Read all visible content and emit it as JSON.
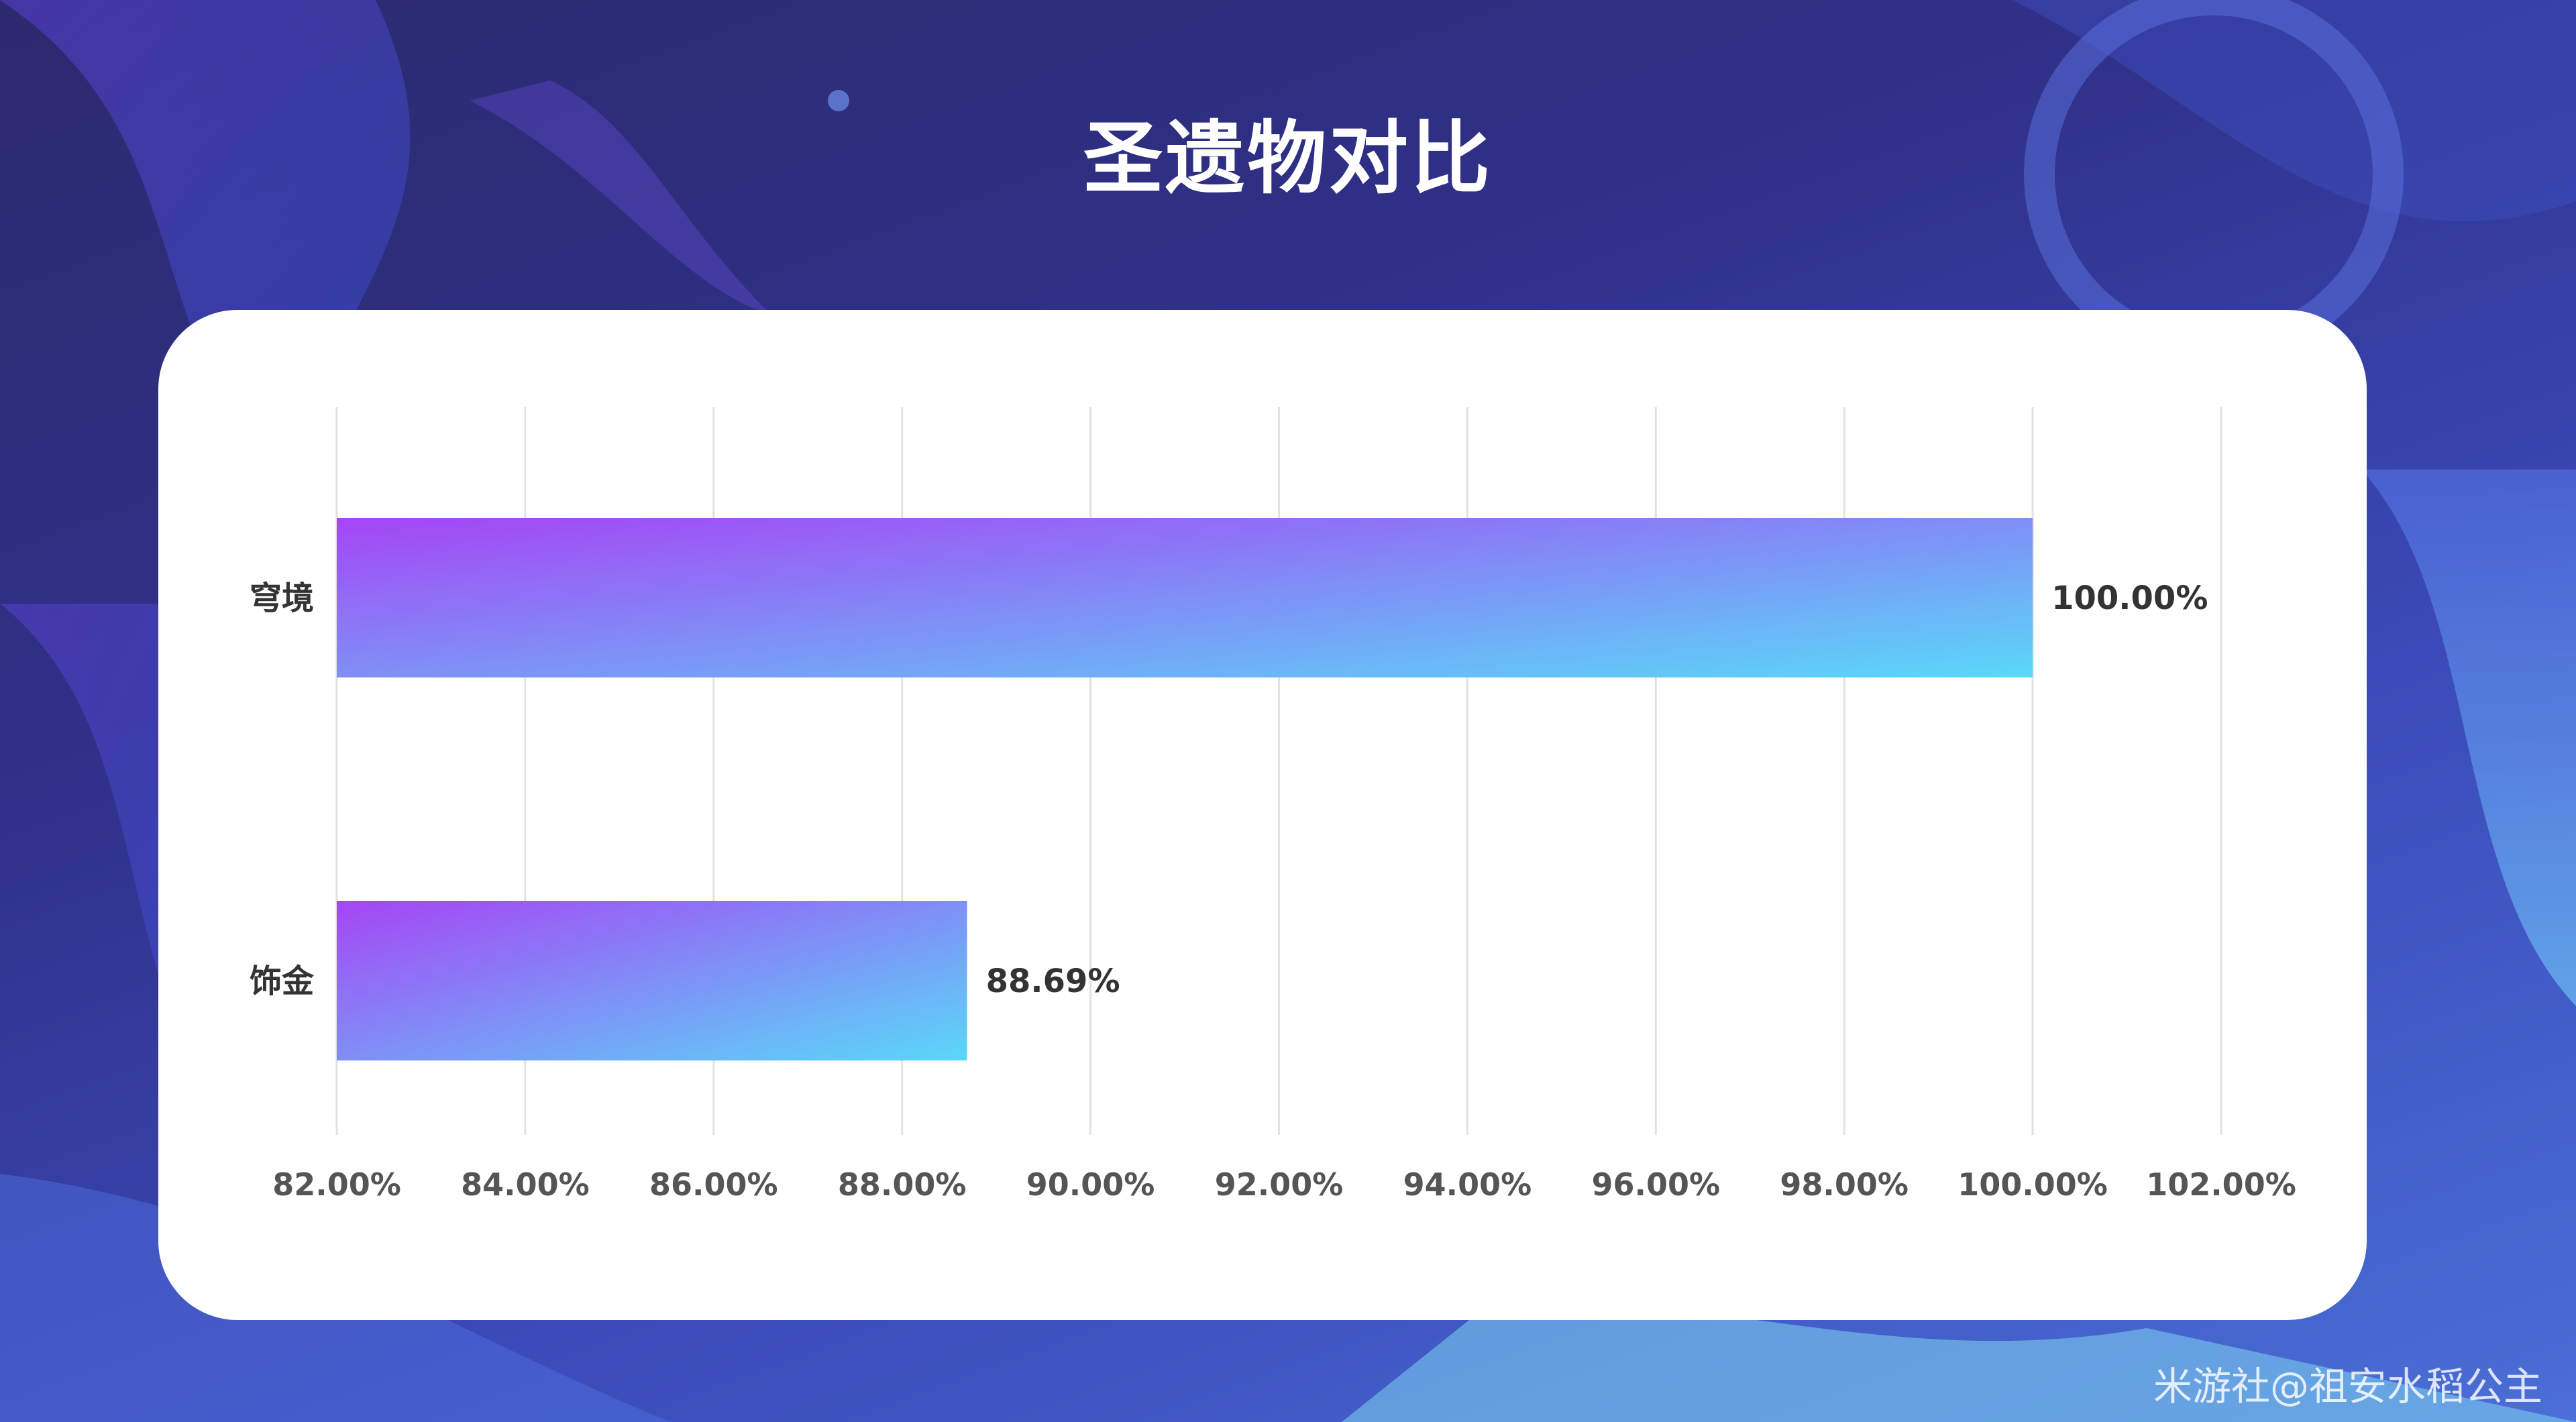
{
  "title": "圣遗物对比",
  "watermark": "米游社@祖安水稻公主",
  "colors": {
    "bar_start": "#a545f5",
    "bar_end": "#5ad8f8",
    "grid": "#e2e2e2",
    "tick_text": "#555555",
    "label_text": "#333333"
  },
  "chart_data": {
    "type": "bar",
    "orientation": "horizontal",
    "categories": [
      "穹境",
      "饰金"
    ],
    "values": [
      100.0,
      88.69
    ],
    "data_labels": [
      "100.00%",
      "88.69%"
    ],
    "xlim": [
      82,
      102
    ],
    "xticks": [
      "82.00%",
      "84.00%",
      "86.00%",
      "88.00%",
      "90.00%",
      "92.00%",
      "94.00%",
      "96.00%",
      "98.00%",
      "100.00%",
      "102.00%"
    ],
    "grid": true,
    "legend": "none"
  }
}
